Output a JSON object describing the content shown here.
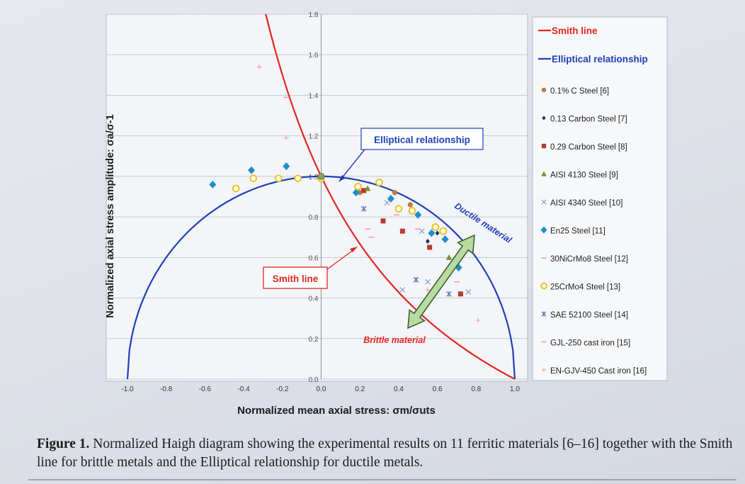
{
  "chart_data": {
    "type": "scatter",
    "xlabel": "Normalized mean axial stress: σm/σuts",
    "ylabel": "Normalized axial stress amplitude: σa/σ-1",
    "xlim": [
      -1.0,
      1.0
    ],
    "ylim": [
      0.0,
      1.8
    ],
    "x_ticks": [
      "-1.0",
      "-0.8",
      "-0.6",
      "-0.4",
      "-0.2",
      "0.0",
      "0.2",
      "0.4",
      "0.6",
      "0.8",
      "1.0"
    ],
    "y_ticks": [
      "0.0",
      "0.2",
      "0.4",
      "0.6",
      "0.8",
      "1.0",
      "1.2",
      "1.4",
      "1.6",
      "1.8"
    ],
    "grid": "horizontal",
    "legend_position": "right",
    "lines": [
      {
        "name": "Smith line",
        "color": "#e0261f"
      },
      {
        "name": "Elliptical relationship",
        "color": "#1f3fb8"
      }
    ],
    "series": [
      {
        "name": "0.1% C Steel [6]",
        "marker": "circle",
        "color": "#c07a3a",
        "points": [
          [
            0.2,
            0.92
          ],
          [
            0.38,
            0.92
          ],
          [
            0.46,
            0.86
          ]
        ]
      },
      {
        "name": "0.13 Carbon Steel [7]",
        "marker": "diamond-small",
        "color": "#24345f",
        "points": [
          [
            0.55,
            0.68
          ],
          [
            0.6,
            0.72
          ]
        ]
      },
      {
        "name": "0.29 Carbon Steel [8]",
        "marker": "square",
        "color": "#b53a2f",
        "points": [
          [
            0.22,
            0.93
          ],
          [
            0.32,
            0.78
          ],
          [
            0.42,
            0.73
          ],
          [
            0.56,
            0.65
          ],
          [
            0.72,
            0.42
          ]
        ]
      },
      {
        "name": "AISI 4130 Steel [9]",
        "marker": "triangle",
        "color": "#7a8f2e",
        "points": [
          [
            0.24,
            0.94
          ],
          [
            0.66,
            0.6
          ]
        ]
      },
      {
        "name": "AISI 4340 Steel [10]",
        "marker": "x",
        "color": "#8aa0c8",
        "points": [
          [
            0.34,
            0.87
          ],
          [
            0.42,
            0.44
          ],
          [
            0.52,
            0.73
          ],
          [
            0.55,
            0.48
          ],
          [
            0.76,
            0.43
          ]
        ]
      },
      {
        "name": "En25 Steel [11]",
        "marker": "diamond",
        "color": "#1b8fd0",
        "points": [
          [
            -0.56,
            0.96
          ],
          [
            -0.36,
            1.03
          ],
          [
            -0.18,
            1.05
          ],
          [
            0.18,
            0.92
          ],
          [
            0.36,
            0.89
          ],
          [
            0.5,
            0.81
          ],
          [
            0.57,
            0.72
          ],
          [
            0.64,
            0.69
          ],
          [
            0.71,
            0.55
          ]
        ]
      },
      {
        "name": "30NiCrMo8 Steel [12]",
        "marker": "dash",
        "color": "#e8a0a0",
        "points": [
          [
            0.24,
            0.74
          ],
          [
            0.39,
            0.81
          ],
          [
            0.5,
            0.74
          ],
          [
            0.7,
            0.48
          ]
        ]
      },
      {
        "name": "25CrMo4 Steel [13]",
        "marker": "ring",
        "color": "#e4c21c",
        "points": [
          [
            -0.44,
            0.94
          ],
          [
            -0.35,
            0.99
          ],
          [
            -0.22,
            0.99
          ],
          [
            -0.12,
            0.99
          ],
          [
            0.0,
            0.99
          ],
          [
            0.19,
            0.95
          ],
          [
            0.3,
            0.97
          ],
          [
            0.4,
            0.84
          ],
          [
            0.47,
            0.83
          ],
          [
            0.59,
            0.75
          ],
          [
            0.63,
            0.73
          ]
        ]
      },
      {
        "name": "SAE 52100 Steel [14]",
        "marker": "xstar",
        "color": "#4c6fae",
        "points": [
          [
            0.22,
            0.84
          ],
          [
            0.49,
            0.49
          ],
          [
            0.66,
            0.42
          ]
        ]
      },
      {
        "name": "GJL-250 cast iron [15]",
        "marker": "dash",
        "color": "#f0a0a0",
        "points": [
          [
            -0.18,
            1.39
          ],
          [
            0.26,
            0.7
          ]
        ]
      },
      {
        "name": "EN-GJV-450 Cast iron [16]",
        "marker": "plus",
        "color": "#f0a8a8",
        "points": [
          [
            -0.32,
            1.54
          ],
          [
            -0.18,
            1.19
          ],
          [
            0.55,
            0.44
          ],
          [
            0.81,
            0.29
          ]
        ]
      }
    ],
    "annotations": [
      {
        "text": "Elliptical relationship",
        "color": "#1f3fb8"
      },
      {
        "text": "Smith line",
        "color": "#e0261f"
      },
      {
        "text": "Ductile material",
        "color": "#1f3fb8"
      },
      {
        "text": "Brittle material",
        "color": "#e0261f"
      }
    ]
  },
  "caption": {
    "label": "Figure 1.",
    "text": " Normalized Haigh diagram showing the experimental results on 11 ferritic materials [6–16] together with the Smith line for brittle metals and the Elliptical relationship for ductile metals."
  }
}
